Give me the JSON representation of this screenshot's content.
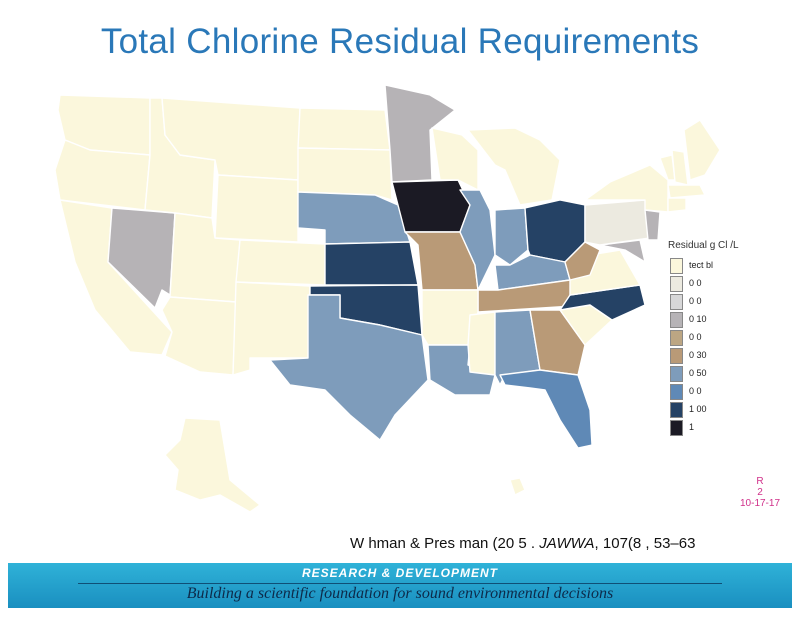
{
  "title": "Total Chlorine Residual Requirements",
  "colors": {
    "title": "#2a78b8",
    "undetectable": "#fbf7dc",
    "c0_02": "#eceae0",
    "c0_05": "#d7d7d8",
    "c0_10": "#b6b3b6",
    "c0_20": "#bca683",
    "c0_30": "#b99a77",
    "c0_50": "#7e9cbb",
    "c0_60": "#5f89b6",
    "c1_00": "#254265",
    "c1_50": "#1b1a24",
    "banner": "#1f9ccc"
  },
  "legend": {
    "title": "Residual g Cl /L",
    "items": [
      {
        "label": "tect bl",
        "color": "#fbf7dc"
      },
      {
        "label": "0 0",
        "color": "#eceae0"
      },
      {
        "label": "0 0",
        "color": "#d7d7d8"
      },
      {
        "label": "0 10",
        "color": "#b6b3b6"
      },
      {
        "label": "0 0",
        "color": "#bca683"
      },
      {
        "label": "0 30",
        "color": "#b99a77"
      },
      {
        "label": "0 50",
        "color": "#7e9cbb"
      },
      {
        "label": "0 0",
        "color": "#5f89b6"
      },
      {
        "label": "1 00",
        "color": "#254265"
      },
      {
        "label": "1",
        "color": "#1b1a24"
      }
    ]
  },
  "citation": {
    "authors": "W hman & Pres man (20 5 . ",
    "journal": "JAWWA",
    "ref": ", 107(8 , 53–63"
  },
  "note": {
    "line1": "R",
    "line2": "2",
    "line3": "10-17-17"
  },
  "banner": {
    "line1": "RESEARCH & DEVELOPMENT",
    "line2": "Building a scientific foundation for sound environmental decisions"
  }
}
